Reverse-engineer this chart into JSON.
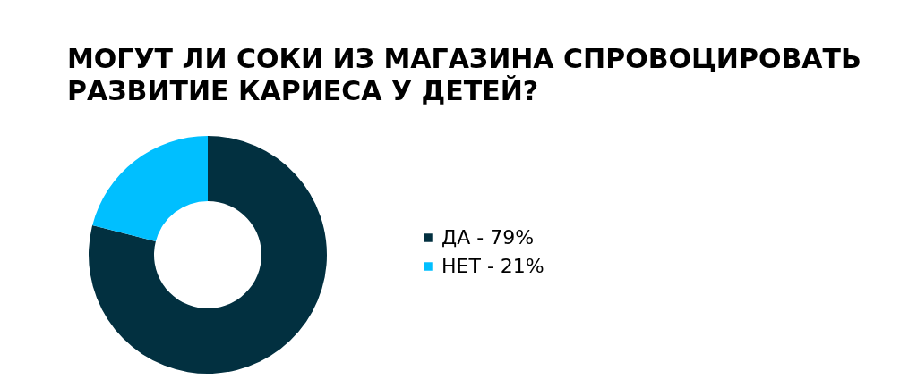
{
  "chart_data": {
    "type": "donut",
    "title": [
      "МОГУТ ЛИ СОКИ ИЗ МАГАЗИНА СПРОВОЦИРОВАТЬ",
      "РАЗВИТИЕ КАРИЕСА У ДЕТЕЙ?"
    ],
    "categories": [
      "ДА",
      "НЕТ"
    ],
    "values": [
      79,
      21
    ],
    "colors": [
      "#023040",
      "#00bfff"
    ],
    "value_labels": [
      "79%",
      "21%"
    ],
    "legend": "right"
  }
}
